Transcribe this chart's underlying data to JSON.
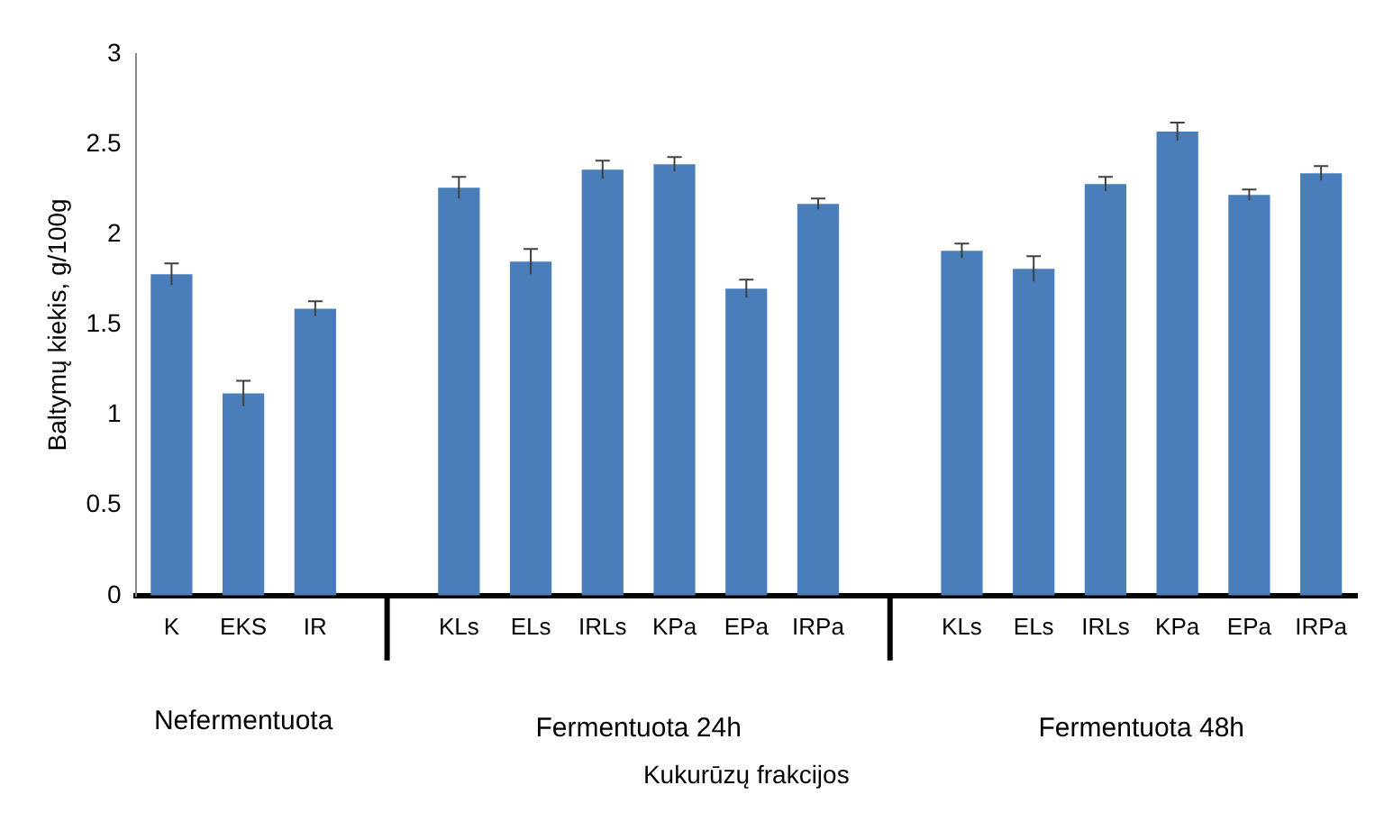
{
  "chart_data": {
    "type": "bar",
    "ylabel": "Baltymų kiekis, g/100g",
    "categories": [
      "K",
      "EKS",
      "IR",
      null,
      "KLs",
      "ELs",
      "IRLs",
      "KPa",
      "EPa",
      "IRPa",
      null,
      "KLs",
      "ELs",
      "IRLs",
      "KPa",
      "EPa",
      "IRPa"
    ],
    "values": [
      1.78,
      1.12,
      1.59,
      null,
      2.26,
      1.85,
      2.36,
      2.39,
      1.7,
      2.17,
      null,
      1.91,
      1.81,
      2.28,
      2.57,
      2.22,
      2.34
    ],
    "errors": [
      0.06,
      0.07,
      0.04,
      null,
      0.06,
      0.07,
      0.05,
      0.04,
      0.05,
      0.03,
      null,
      0.04,
      0.07,
      0.04,
      0.05,
      0.03,
      0.04
    ],
    "color": "#4a7ebb",
    "ylim": [
      0,
      3
    ],
    "yticks": [
      0,
      0.5,
      1,
      1.5,
      2,
      2.5,
      3
    ],
    "grid": false,
    "legend": false,
    "annotations": [
      "Nefermentuota",
      "Fermentuota 24h",
      "Fermentuota 48h",
      "Kukurūzų frakcijos"
    ]
  }
}
